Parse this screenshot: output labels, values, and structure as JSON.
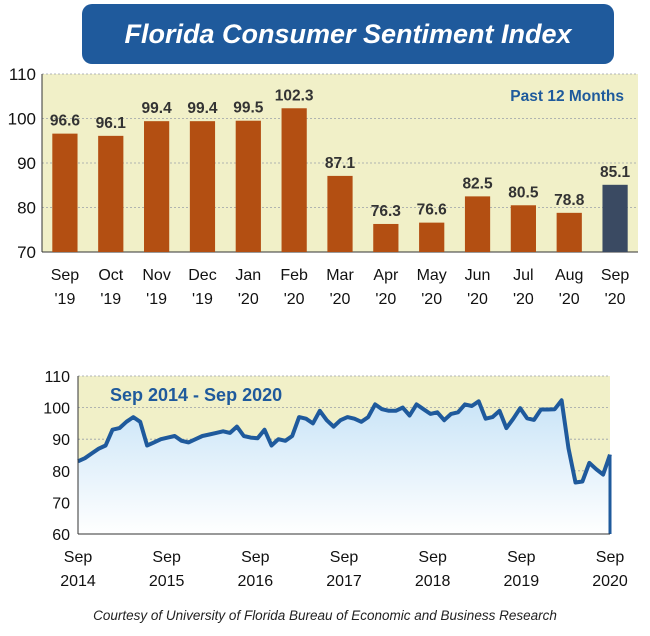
{
  "title": "Florida Consumer Sentiment Index",
  "credit": "Courtesy of University of Florida Bureau of Economic and Business Research",
  "chart_data": [
    {
      "type": "bar",
      "annotation": "Past 12 Months",
      "categories": [
        [
          "Sep",
          "'19"
        ],
        [
          "Oct",
          "'19"
        ],
        [
          "Nov",
          "'19"
        ],
        [
          "Dec",
          "'19"
        ],
        [
          "Jan",
          "'20"
        ],
        [
          "Feb",
          "'20"
        ],
        [
          "Mar",
          "'20"
        ],
        [
          "Apr",
          "'20"
        ],
        [
          "May",
          "'20"
        ],
        [
          "Jun",
          "'20"
        ],
        [
          "Jul",
          "'20"
        ],
        [
          "Aug",
          "'20"
        ],
        [
          "Sep",
          "'20"
        ]
      ],
      "values": [
        96.6,
        96.1,
        99.4,
        99.4,
        99.5,
        102.3,
        87.1,
        76.3,
        76.6,
        82.5,
        80.5,
        78.8,
        85.1
      ],
      "value_labels": [
        "96.6",
        "96.1",
        "99.4",
        "99.4",
        "99.5",
        "102.3",
        "87.1",
        "76.3",
        "76.6",
        "82.5",
        "80.5",
        "78.8",
        "85.1"
      ],
      "ylim": [
        70,
        110
      ],
      "yticks": [
        70,
        80,
        90,
        100,
        110
      ],
      "colors": {
        "bar": "#b34f12",
        "highlight": "#3a4a62",
        "background": "#f1f0c8"
      }
    },
    {
      "type": "area",
      "annotation": "Sep 2014 - Sep 2020",
      "ylim": [
        60,
        110
      ],
      "yticks": [
        60,
        70,
        80,
        90,
        100,
        110
      ],
      "xticks": [
        [
          "Sep",
          "2014"
        ],
        [
          "Sep",
          "2015"
        ],
        [
          "Sep",
          "2016"
        ],
        [
          "Sep",
          "2017"
        ],
        [
          "Sep",
          "2018"
        ],
        [
          "Sep",
          "2019"
        ],
        [
          "Sep",
          "2020"
        ]
      ],
      "x_start": "Sep 2014",
      "values": [
        83,
        84,
        85.5,
        87,
        88,
        93,
        93.5,
        95.5,
        97,
        95.5,
        88,
        89,
        90,
        90.5,
        91,
        89.5,
        89,
        90,
        91,
        91.5,
        92,
        92.5,
        92,
        94,
        91,
        90.5,
        90.3,
        93,
        88,
        90,
        89.5,
        91,
        97,
        96.5,
        95,
        99,
        96,
        94,
        96,
        97,
        96.5,
        95.5,
        97,
        101,
        99.5,
        99,
        99,
        100,
        97.5,
        101,
        99.5,
        98,
        98.5,
        96,
        98,
        98.5,
        101,
        100.5,
        102,
        96.5,
        97,
        99,
        93.5,
        96.5,
        99.8,
        96.6,
        96.1,
        99.4,
        99.4,
        99.5,
        102.3,
        87.1,
        76.3,
        76.6,
        82.5,
        80.5,
        78.8,
        85.1
      ],
      "colors": {
        "line": "#1f5a9c",
        "fill_top": "#c9e4f7",
        "fill_bottom": "#ffffff",
        "background": "#f1f0c8"
      }
    }
  ]
}
